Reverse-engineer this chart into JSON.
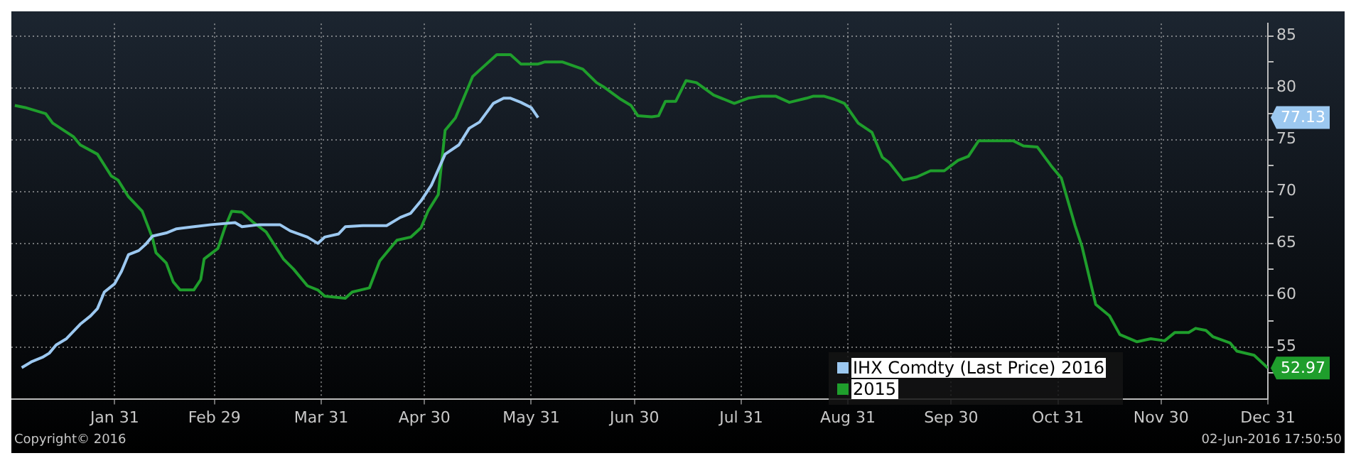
{
  "chart_data": {
    "type": "line",
    "x": [
      "--01-04",
      "--01-07",
      "--01-10",
      "--01-12",
      "--01-14",
      "--01-17",
      "--01-21",
      "--01-24",
      "--01-26",
      "--01-28",
      "--01-31",
      "--02-02",
      "--02-04",
      "--02-07",
      "--02-09",
      "--02-11",
      "--02-15",
      "--02-18",
      "--02-23",
      "--02-28",
      "--03-06",
      "--03-08",
      "--03-13",
      "--03-19",
      "--03-22",
      "--03-27",
      "--03-30",
      "--04-01",
      "--04-05",
      "--04-07",
      "--04-12",
      "--04-19",
      "--04-23",
      "--04-26",
      "--04-29",
      "--05-02",
      "--05-06",
      "--05-10",
      "--05-13",
      "--05-16",
      "--05-20",
      "--05-23",
      "--05-25",
      "--05-28",
      "--05-31",
      "--06-02"
    ],
    "series": [
      {
        "name": "IHX Comdty (Last Price) 2016",
        "color": "#9cc8f0",
        "values": [
          53.0,
          53.6,
          54.0,
          54.4,
          55.2,
          55.8,
          57.2,
          58.0,
          58.7,
          60.3,
          61.1,
          62.3,
          63.9,
          64.3,
          64.9,
          65.7,
          66.0,
          66.4,
          66.6,
          66.8,
          67.0,
          66.6,
          66.8,
          66.8,
          66.2,
          65.6,
          65.0,
          65.6,
          65.9,
          66.6,
          66.7,
          66.7,
          67.5,
          67.9,
          69.1,
          70.6,
          73.6,
          74.5,
          76.1,
          76.7,
          78.5,
          79.0,
          79.0,
          78.6,
          78.1,
          77.13
        ]
      },
      {
        "name": "2015",
        "color": "#1f9e2c",
        "x": [
          "--01-02",
          "--01-05",
          "--01-11",
          "--01-13",
          "--01-19",
          "--01-21",
          "--01-26",
          "--01-30",
          "--02-01",
          "--02-04",
          "--02-08",
          "--02-11",
          "--02-12",
          "--02-15",
          "--02-17",
          "--02-19",
          "--02-23",
          "--02-25",
          "--02-26",
          "--03-01",
          "--03-03",
          "--03-05",
          "--03-08",
          "--03-11",
          "--03-15",
          "--03-20",
          "--03-23",
          "--03-27",
          "--03-30",
          "--04-01",
          "--04-07",
          "--04-09",
          "--04-14",
          "--04-17",
          "--04-22",
          "--04-26",
          "--04-29",
          "--05-01",
          "--05-04",
          "--05-06",
          "--05-09",
          "--05-14",
          "--05-16",
          "--05-21",
          "--05-25",
          "--05-28",
          "--06-02",
          "--06-04",
          "--06-09",
          "--06-15",
          "--06-19",
          "--06-21",
          "--06-26",
          "--06-29",
          "--07-01",
          "--07-05",
          "--07-07",
          "--07-09",
          "--07-12",
          "--07-15",
          "--07-18",
          "--07-23",
          "--07-29",
          "--08-02",
          "--08-06",
          "--08-10",
          "--08-14",
          "--08-19",
          "--08-21",
          "--08-24",
          "--08-27",
          "--08-30",
          "--09-03",
          "--09-07",
          "--09-10",
          "--09-12",
          "--09-16",
          "--09-20",
          "--09-24",
          "--09-28",
          "--10-02",
          "--10-05",
          "--10-08",
          "--10-18",
          "--10-21",
          "--10-25",
          "--10-29",
          "--11-01",
          "--11-05",
          "--11-07",
          "--11-11",
          "--11-15",
          "--11-18",
          "--11-23",
          "--11-27",
          "--12-01",
          "--12-04",
          "--12-08",
          "--12-10",
          "--12-13",
          "--12-15",
          "--12-20",
          "--12-22",
          "--12-27",
          "--12-31"
        ],
        "value_labels": [
          null,
          null,
          null,
          null,
          null,
          null,
          null,
          null,
          null,
          null,
          null,
          null,
          null,
          null,
          null,
          null,
          null,
          null,
          null,
          null,
          null,
          null,
          null,
          null,
          null,
          null,
          null,
          null,
          null,
          null,
          null,
          null,
          null,
          null,
          null,
          null,
          null,
          null,
          null,
          null,
          null,
          null,
          null,
          null,
          null,
          null,
          null,
          null,
          null,
          null,
          null,
          null,
          null,
          null,
          null,
          null,
          null,
          null,
          null,
          null,
          null,
          null,
          null,
          null,
          null,
          null,
          null,
          null,
          null,
          null,
          null,
          null,
          null,
          null,
          null,
          null,
          null,
          null,
          null,
          null,
          null,
          null,
          null,
          null,
          null,
          null,
          null,
          null,
          null,
          null,
          null,
          null,
          null,
          null,
          null,
          null,
          null,
          null,
          null,
          null,
          null,
          null,
          null,
          null,
          "52.97"
        ],
        "values": [
          78.3,
          78.1,
          77.5,
          76.6,
          75.3,
          74.5,
          73.6,
          71.5,
          71.1,
          69.5,
          68.1,
          65.5,
          64.1,
          63.1,
          61.3,
          60.5,
          60.5,
          61.5,
          63.5,
          64.5,
          66.5,
          68.1,
          68.0,
          67.1,
          66.1,
          63.5,
          62.5,
          60.9,
          60.5,
          59.9,
          59.7,
          60.3,
          60.7,
          63.3,
          65.3,
          65.6,
          66.5,
          68.1,
          69.7,
          75.9,
          77.1,
          81.1,
          81.7,
          83.2,
          83.2,
          82.3,
          82.3,
          82.5,
          82.5,
          81.8,
          80.5,
          80.1,
          78.9,
          78.3,
          77.3,
          77.2,
          77.3,
          78.7,
          78.7,
          80.7,
          80.5,
          79.3,
          78.5,
          79.0,
          79.2,
          79.2,
          78.6,
          79.0,
          79.2,
          79.2,
          78.9,
          78.5,
          76.6,
          75.7,
          73.3,
          72.8,
          71.1,
          71.4,
          72.0,
          72.0,
          73.0,
          73.4,
          74.9,
          74.9,
          74.4,
          74.3,
          72.5,
          71.3,
          66.7,
          64.7,
          59.1,
          58.0,
          56.2,
          55.5,
          55.8,
          55.6,
          56.4,
          56.4,
          56.8,
          56.6,
          56.0,
          55.4,
          54.6,
          54.2,
          52.97
        ]
      }
    ],
    "xlim": [
      "--01-01",
      "--12-31"
    ],
    "xticks": [
      {
        "value": "--01-31",
        "label": "Jan 31"
      },
      {
        "value": "--02-29",
        "label": "Feb 29"
      },
      {
        "value": "--03-31",
        "label": "Mar 31"
      },
      {
        "value": "--04-30",
        "label": "Apr 30"
      },
      {
        "value": "--05-31",
        "label": "May 31"
      },
      {
        "value": "--06-30",
        "label": "Jun 30"
      },
      {
        "value": "--07-31",
        "label": "Jul 31"
      },
      {
        "value": "--08-31",
        "label": "Aug 31"
      },
      {
        "value": "--09-30",
        "label": "Sep 30"
      },
      {
        "value": "--10-31",
        "label": "Oct 31"
      },
      {
        "value": "--11-30",
        "label": "Nov 30"
      },
      {
        "value": "--12-31",
        "label": "Dec 31"
      }
    ],
    "ylim": [
      50,
      86.2
    ],
    "yticks": [
      {
        "value": 52.5,
        "label": null
      },
      55,
      {
        "value": 57.5,
        "label": null
      },
      60,
      {
        "value": 62.5,
        "label": null
      },
      65,
      {
        "value": 67.5,
        "label": null
      },
      70,
      {
        "value": 72.5,
        "label": null
      },
      75,
      {
        "value": 77.5,
        "label": null
      },
      80,
      {
        "value": 82.5,
        "label": null
      },
      85
    ],
    "grid": true,
    "legend": "bottom",
    "marker": "none",
    "line_style": "solid",
    "annotations": [
      "77.13",
      "Copyright© 2016",
      "02-Jun-2016 17:50:50"
    ]
  }
}
